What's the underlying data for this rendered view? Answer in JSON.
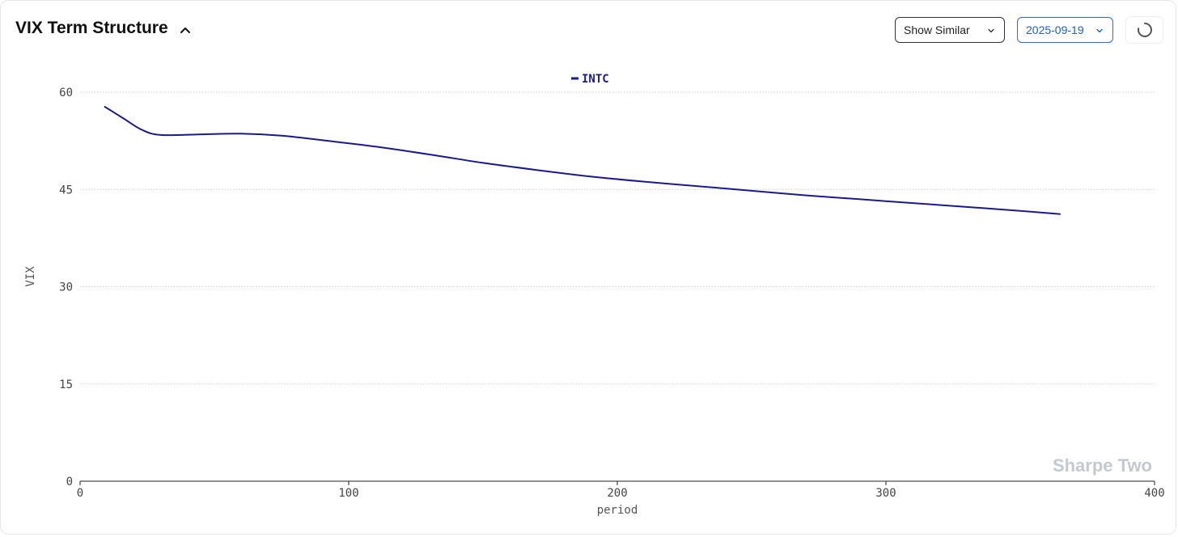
{
  "header": {
    "title": "VIX Term Structure",
    "collapse_icon": "chevron-up-icon"
  },
  "controls": {
    "show_similar_label": "Show Similar",
    "date_value": "2025-09-19",
    "refresh_icon": "loading-spinner-icon"
  },
  "watermark": "Sharpe Two",
  "colors": {
    "series": "#1a1a8c",
    "date_accent": "#1d5fc7",
    "watermark": "#c4c8cf",
    "grid": "#cfcfcf"
  },
  "chart_data": {
    "type": "line",
    "title": "",
    "xlabel": "period",
    "ylabel": "VIX",
    "xlim": [
      0,
      400
    ],
    "ylim": [
      0,
      60
    ],
    "x_ticks": [
      0,
      100,
      200,
      300,
      400
    ],
    "y_ticks": [
      0,
      15,
      30,
      45,
      60
    ],
    "grid": "horizontal dotted",
    "legend": "top-center",
    "series": [
      {
        "name": "INTC",
        "color": "#1a1a8c",
        "x": [
          9,
          16,
          23,
          30,
          45,
          60,
          75,
          90,
          110,
          130,
          150,
          170,
          190,
          210,
          230,
          250,
          270,
          290,
          310,
          330,
          350,
          365
        ],
        "y": [
          57.8,
          56.0,
          54.2,
          53.4,
          53.5,
          53.6,
          53.3,
          52.6,
          51.6,
          50.4,
          49.1,
          48.0,
          47.0,
          46.2,
          45.5,
          44.8,
          44.1,
          43.5,
          42.9,
          42.3,
          41.7,
          41.2
        ]
      }
    ]
  }
}
